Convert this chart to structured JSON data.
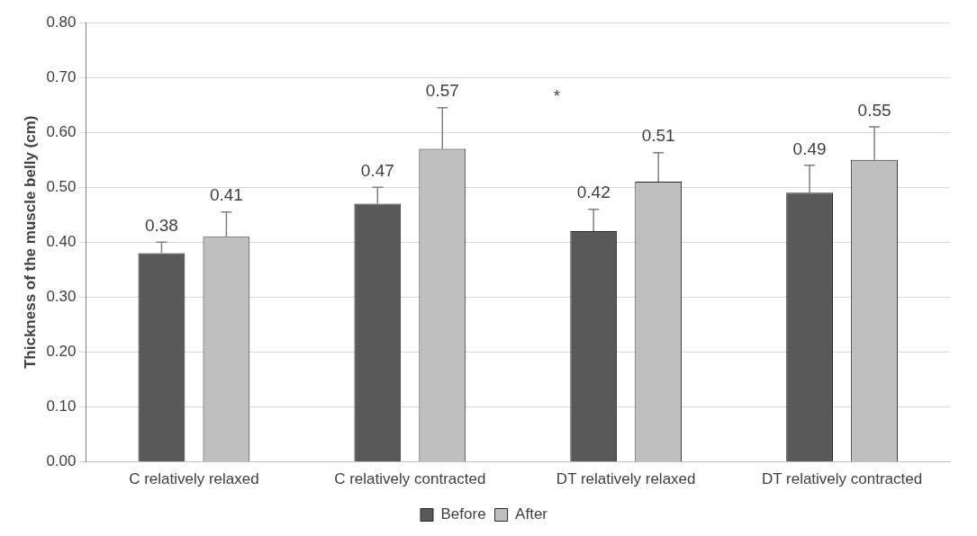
{
  "chart_data": {
    "type": "bar",
    "ylabel": "Thickness of the muscle belly (cm)",
    "categories": [
      "C relatively relaxed",
      "C relatively contracted",
      "DT relatively relaxed",
      "DT relatively contracted"
    ],
    "series": [
      {
        "name": "Before",
        "color": "#595959",
        "values": [
          0.38,
          0.47,
          0.42,
          0.49
        ],
        "errors": [
          [
            0.38,
            0.4
          ],
          [
            0.47,
            0.5
          ],
          [
            0.42,
            0.46
          ],
          [
            0.49,
            0.54
          ]
        ]
      },
      {
        "name": "After",
        "color": "#bfbfbf",
        "values": [
          0.41,
          0.57,
          0.51,
          0.55
        ],
        "errors": [
          [
            0.41,
            0.455
          ],
          [
            0.57,
            0.645
          ],
          [
            0.51,
            0.563
          ],
          [
            0.55,
            0.61
          ]
        ]
      }
    ],
    "ylim": [
      0,
      0.8
    ],
    "yticks": [
      {
        "value": 0,
        "label": "0.00"
      },
      {
        "value": 0.1,
        "label": "0.10"
      },
      {
        "value": 0.2,
        "label": "0.20"
      },
      {
        "value": 0.3,
        "label": "0.30"
      },
      {
        "value": 0.4,
        "label": "0.40"
      },
      {
        "value": 0.5,
        "label": "0.50"
      },
      {
        "value": 0.6,
        "label": "0.60"
      },
      {
        "value": 0.7,
        "label": "0.70"
      },
      {
        "value": 0.8,
        "label": "0.80"
      }
    ],
    "grid": "y",
    "legend": "bottom",
    "data_labels": true,
    "annotations": [
      "*"
    ]
  }
}
